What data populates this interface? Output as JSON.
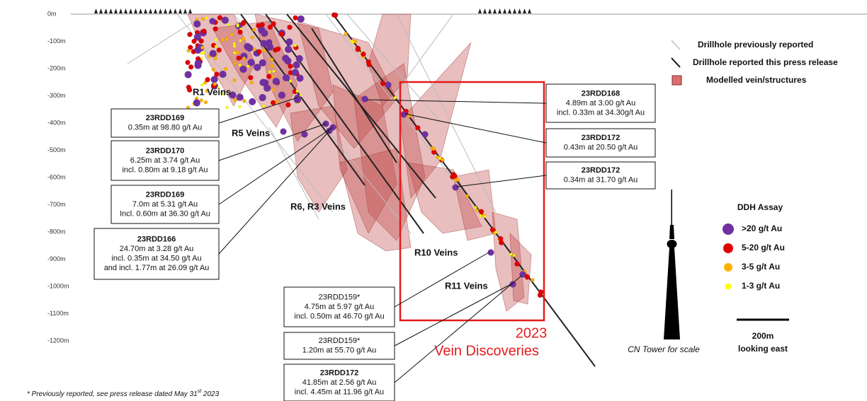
{
  "depth_labels": [
    "0m",
    "-100m",
    "-200m",
    "-300m",
    "-400m",
    "-500m",
    "-600m",
    "-700m",
    "-800m",
    "-900m",
    "-1000m",
    "-1100m",
    "-1200m"
  ],
  "legend": {
    "items": [
      "Drillhole previously reported",
      "Drillhole reported this press release",
      "Modelled vein/structures"
    ]
  },
  "assay_legend": {
    "title": "DDH Assay",
    "items": [
      {
        "label": ">20 g/t Au",
        "color": "#7030a0"
      },
      {
        "label": "5-20 g/t Au",
        "color": "#e00000"
      },
      {
        "label": "3-5 g/t Au",
        "color": "#ffb000"
      },
      {
        "label": "1-3 g/t Au",
        "color": "#ffff00"
      }
    ]
  },
  "vein_labels": [
    "R1 Veins",
    "R5 Veins",
    "R6, R3 Veins",
    "R10 Veins",
    "R11 Veins"
  ],
  "callouts": [
    {
      "lines": [
        "23RDD169",
        "0.35m at 98.80 g/t Au"
      ]
    },
    {
      "lines": [
        "23RDD170",
        "6.25m at 3.74 g/t Au",
        "incl. 0.80m at 9.18 g/t Au"
      ]
    },
    {
      "lines": [
        "23RDD169",
        "7.0m at 5.31 g/t Au",
        "Incl. 0.60m at 36.30 g/t Au"
      ]
    },
    {
      "lines": [
        "23RDD166",
        "24.70m at 3.28 g/t Au",
        "incl. 0.35m at 34.50 g/t Au",
        "and incl. 1.77m at 26.09 g/t Au"
      ]
    },
    {
      "lines": [
        "23RDD168",
        "4.89m at 3.00 g/t Au",
        "incl. 0.33m at 34.30g/t Au"
      ]
    },
    {
      "lines": [
        "23RDD172",
        "0.43m at 20.50 g/t Au"
      ]
    },
    {
      "lines": [
        "23RDD172",
        "0.34m at 31.70 g/t Au"
      ]
    },
    {
      "lines": [
        "23RDD159*",
        "4.75m at 5.97 g/t Au",
        "incl. 0.50m at 46.70 g/t Au"
      ]
    },
    {
      "lines": [
        "23RDD159*",
        "1.20m at 55.70 g/t Au"
      ]
    },
    {
      "lines": [
        "23RDD172",
        "41.85m at 2.56 g/t Au",
        "incl. 4.45m at 11.96 g/t Au"
      ]
    }
  ],
  "discovery_box": {
    "lines": [
      "2023",
      "Vein Discoveries"
    ]
  },
  "scale": {
    "tower_label": "CN Tower for scale",
    "bar_label": "200m",
    "direction": "looking east"
  },
  "footnote": {
    "parts": [
      "* Previously reported, see press release dated May 31",
      "st",
      " 2023"
    ]
  }
}
